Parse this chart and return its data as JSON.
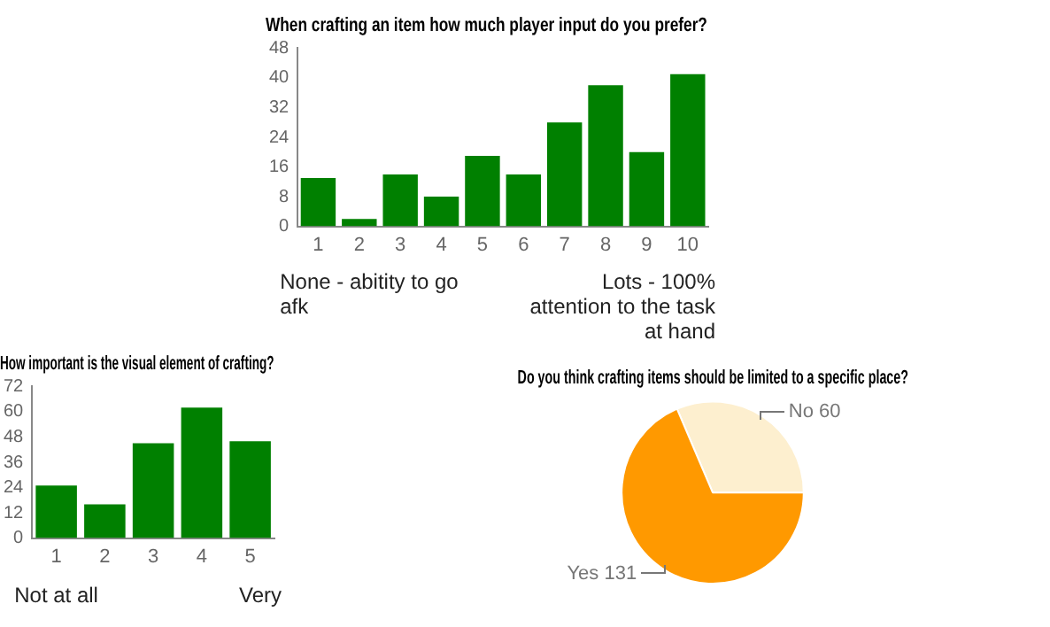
{
  "chart_data": [
    {
      "type": "bar",
      "title": "When crafting an item how much player input do you prefer?",
      "categories": [
        "1",
        "2",
        "3",
        "4",
        "5",
        "6",
        "7",
        "8",
        "9",
        "10"
      ],
      "values": [
        13,
        2,
        14,
        8,
        19,
        14,
        28,
        38,
        20,
        41
      ],
      "color": "#008000",
      "ylim": [
        0,
        48
      ],
      "yticks": [
        0,
        8,
        16,
        24,
        32,
        40,
        48
      ],
      "grid": false,
      "legend": false,
      "annotations": [
        "None - abitity to go afk",
        "Lots - 100% attention to the task at hand"
      ]
    },
    {
      "type": "bar",
      "title": "How important is the visual element of crafting?",
      "categories": [
        "1",
        "2",
        "3",
        "4",
        "5"
      ],
      "values": [
        25,
        16,
        45,
        62,
        46
      ],
      "color": "#008000",
      "ylim": [
        0,
        72
      ],
      "yticks": [
        0,
        12,
        24,
        36,
        48,
        60,
        72
      ],
      "grid": false,
      "legend": false,
      "annotations": [
        "Not at all",
        "Very"
      ]
    },
    {
      "type": "pie",
      "title": "Do you think crafting items should be limited to a specific place?",
      "categories": [
        "No",
        "Yes"
      ],
      "values": [
        60,
        131
      ],
      "colors": [
        "#fdefcf",
        "#ff9900"
      ],
      "data_labels": true,
      "legend": false
    }
  ]
}
